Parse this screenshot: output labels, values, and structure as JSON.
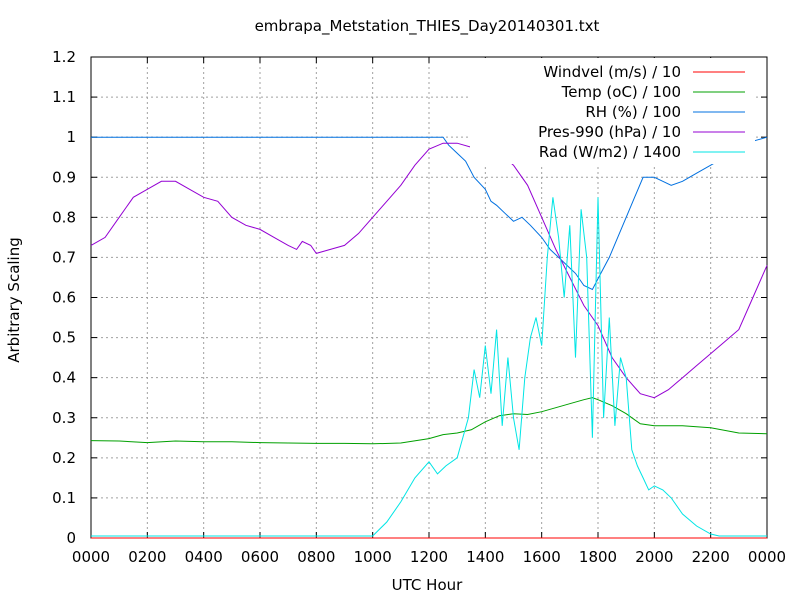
{
  "chart_data": {
    "type": "line",
    "title": "embrapa_Metstation_THIES_Day20140301.txt",
    "xlabel": "UTC Hour",
    "ylabel": "Arbitrary Scaling",
    "xlim": [
      0,
      24
    ],
    "ylim": [
      0,
      1.2
    ],
    "grid": true,
    "legend_position": "top-right",
    "x_ticks": [
      "0000",
      "0200",
      "0400",
      "0600",
      "0800",
      "1000",
      "1200",
      "1400",
      "1600",
      "1800",
      "2000",
      "2200",
      "0000"
    ],
    "y_ticks": [
      "0",
      "0.1",
      "0.2",
      "0.3",
      "0.4",
      "0.5",
      "0.6",
      "0.7",
      "0.8",
      "0.9",
      "1",
      "1.1",
      "1.2"
    ],
    "series": [
      {
        "name": "Windvel (m/s) / 10",
        "color": "#ff0000",
        "x": [
          0,
          24
        ],
        "y": [
          0,
          0
        ]
      },
      {
        "name": "Temp (oC) / 100",
        "color": "#00a000",
        "x": [
          0,
          1,
          2,
          3,
          4,
          5,
          6,
          7,
          8,
          9,
          10,
          11,
          12,
          12.5,
          13,
          13.5,
          14,
          14.5,
          15,
          15.5,
          16,
          16.5,
          17,
          17.5,
          17.8,
          18,
          18.5,
          19,
          19.5,
          20,
          21,
          22,
          23,
          24
        ],
        "y": [
          0.243,
          0.242,
          0.238,
          0.242,
          0.24,
          0.24,
          0.238,
          0.237,
          0.236,
          0.236,
          0.235,
          0.237,
          0.248,
          0.258,
          0.262,
          0.27,
          0.29,
          0.305,
          0.31,
          0.308,
          0.315,
          0.325,
          0.335,
          0.345,
          0.35,
          0.345,
          0.33,
          0.31,
          0.285,
          0.28,
          0.28,
          0.275,
          0.262,
          0.26
        ]
      },
      {
        "name": "RH (%) / 100",
        "color": "#0070e0",
        "x": [
          0,
          12.5,
          12.7,
          13,
          13.3,
          13.6,
          14,
          14.2,
          14.4,
          14.7,
          15,
          15.3,
          15.6,
          16,
          16.3,
          16.6,
          16.9,
          17.2,
          17.5,
          17.8,
          18.1,
          18.4,
          18.7,
          19,
          19.3,
          19.6,
          20,
          20.3,
          20.6,
          21,
          21.5,
          22,
          22.5,
          23,
          23.5,
          24
        ],
        "y": [
          1.0,
          1.0,
          0.98,
          0.96,
          0.94,
          0.9,
          0.87,
          0.84,
          0.83,
          0.81,
          0.79,
          0.8,
          0.78,
          0.75,
          0.72,
          0.7,
          0.68,
          0.66,
          0.63,
          0.62,
          0.66,
          0.7,
          0.75,
          0.8,
          0.85,
          0.9,
          0.9,
          0.89,
          0.88,
          0.89,
          0.91,
          0.93,
          0.95,
          0.97,
          0.99,
          1.0
        ]
      },
      {
        "name": "Pres-990 (hPa) / 10",
        "color": "#9400d3",
        "x": [
          0,
          0.5,
          1,
          1.5,
          2,
          2.5,
          3,
          3.5,
          4,
          4.5,
          5,
          5.5,
          6,
          6.5,
          7,
          7.3,
          7.5,
          7.8,
          8,
          8.5,
          9,
          9.5,
          10,
          10.5,
          11,
          11.5,
          12,
          12.5,
          13,
          13.5,
          14,
          14.5,
          15,
          15.5,
          16,
          16.5,
          17,
          17.5,
          18,
          18.5,
          19,
          19.5,
          20,
          20.5,
          21,
          21.5,
          22,
          22.5,
          23,
          23.5,
          24
        ],
        "y": [
          0.73,
          0.75,
          0.8,
          0.85,
          0.87,
          0.89,
          0.89,
          0.87,
          0.85,
          0.84,
          0.8,
          0.78,
          0.77,
          0.75,
          0.73,
          0.72,
          0.74,
          0.73,
          0.71,
          0.72,
          0.73,
          0.76,
          0.8,
          0.84,
          0.88,
          0.93,
          0.97,
          0.985,
          0.985,
          0.975,
          0.97,
          0.96,
          0.93,
          0.88,
          0.8,
          0.72,
          0.65,
          0.58,
          0.53,
          0.45,
          0.4,
          0.36,
          0.35,
          0.37,
          0.4,
          0.43,
          0.46,
          0.49,
          0.52,
          0.6,
          0.68
        ]
      },
      {
        "name": "Rad (W/m2) / 1400",
        "color": "#00e5e5",
        "x": [
          0,
          10,
          10.5,
          11,
          11.5,
          12,
          12.3,
          12.6,
          13,
          13.2,
          13.4,
          13.6,
          13.8,
          14,
          14.2,
          14.4,
          14.6,
          14.8,
          15,
          15.2,
          15.4,
          15.6,
          15.8,
          16,
          16.2,
          16.4,
          16.6,
          16.8,
          17,
          17.2,
          17.4,
          17.6,
          17.8,
          18,
          18.2,
          18.4,
          18.6,
          18.8,
          19,
          19.2,
          19.4,
          19.6,
          19.8,
          20,
          20.3,
          20.6,
          21,
          21.5,
          22,
          22.3,
          22.6,
          23,
          24
        ],
        "y": [
          0.005,
          0.005,
          0.04,
          0.09,
          0.15,
          0.19,
          0.16,
          0.18,
          0.2,
          0.25,
          0.3,
          0.42,
          0.35,
          0.48,
          0.36,
          0.52,
          0.28,
          0.45,
          0.3,
          0.22,
          0.4,
          0.5,
          0.55,
          0.48,
          0.7,
          0.85,
          0.75,
          0.6,
          0.78,
          0.45,
          0.82,
          0.7,
          0.25,
          0.85,
          0.3,
          0.55,
          0.28,
          0.45,
          0.4,
          0.22,
          0.18,
          0.15,
          0.12,
          0.13,
          0.12,
          0.1,
          0.06,
          0.03,
          0.01,
          0.005,
          0.005,
          0.005,
          0.005
        ]
      }
    ]
  }
}
